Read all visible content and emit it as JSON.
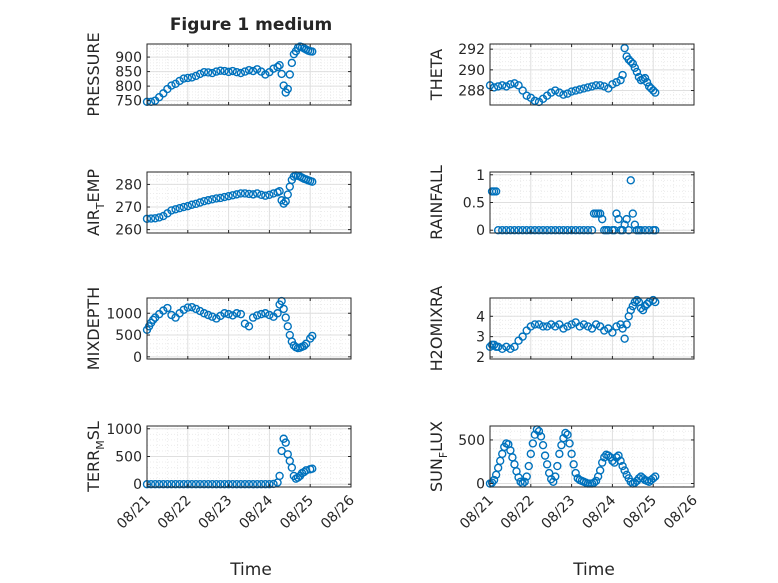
{
  "figure": {
    "title": "Figure 1 medium",
    "xlabel": "Time"
  },
  "colors": {
    "marker": "#0072bd",
    "axis": "#262626",
    "grid": "#dfdfdf",
    "minor_grid": "#ececec"
  },
  "chart_data": [
    {
      "type": "scatter",
      "ylabel": "PRESSURE",
      "yticks": [
        750,
        800,
        850,
        900
      ],
      "ylim": [
        735,
        945
      ],
      "series": [
        {
          "x": [
            0.0,
            0.1,
            0.2,
            0.3,
            0.4,
            0.5,
            0.6,
            0.7,
            0.8,
            0.9,
            1.0,
            1.1,
            1.2,
            1.3,
            1.4,
            1.5,
            1.6,
            1.7,
            1.8,
            1.9,
            2.0,
            2.1,
            2.2,
            2.3,
            2.4,
            2.5,
            2.6,
            2.7,
            2.8,
            2.9,
            3.0,
            3.1,
            3.2,
            3.25,
            3.3,
            3.35,
            3.4,
            3.45,
            3.5,
            3.55,
            3.6,
            3.65,
            3.7,
            3.75,
            3.8,
            3.85,
            3.9,
            3.95,
            4.0,
            4.05
          ],
          "y": [
            746,
            746,
            750,
            762,
            775,
            790,
            802,
            808,
            818,
            826,
            828,
            830,
            835,
            842,
            848,
            847,
            845,
            850,
            853,
            852,
            849,
            852,
            848,
            845,
            850,
            855,
            852,
            858,
            850,
            840,
            848,
            860,
            866,
            872,
            842,
            802,
            778,
            790,
            840,
            880,
            910,
            920,
            932,
            936,
            934,
            930,
            926,
            922,
            920,
            919
          ]
        }
      ]
    },
    {
      "type": "scatter",
      "ylabel": "THETA",
      "yticks": [
        288,
        290,
        292
      ],
      "ylim": [
        286.6,
        292.5
      ],
      "series": [
        {
          "x": [
            0.0,
            0.1,
            0.2,
            0.3,
            0.4,
            0.5,
            0.6,
            0.7,
            0.8,
            0.9,
            1.0,
            1.1,
            1.2,
            1.3,
            1.4,
            1.5,
            1.6,
            1.7,
            1.8,
            1.9,
            2.0,
            2.1,
            2.2,
            2.3,
            2.4,
            2.5,
            2.6,
            2.7,
            2.8,
            2.9,
            3.0,
            3.1,
            3.2,
            3.25,
            3.3,
            3.35,
            3.4,
            3.45,
            3.5,
            3.55,
            3.6,
            3.65,
            3.7,
            3.75,
            3.8,
            3.85,
            3.9,
            3.95,
            4.0,
            4.05
          ],
          "y": [
            288.5,
            288.3,
            288.4,
            288.5,
            288.4,
            288.6,
            288.7,
            288.5,
            288.0,
            287.5,
            287.3,
            287.0,
            286.9,
            287.2,
            287.5,
            287.8,
            288.0,
            287.8,
            287.6,
            287.7,
            287.9,
            288.0,
            288.1,
            288.2,
            288.3,
            288.4,
            288.5,
            288.5,
            288.4,
            288.2,
            288.6,
            288.8,
            289.0,
            289.5,
            292.1,
            291.3,
            291.0,
            290.8,
            290.6,
            290.2,
            289.8,
            289.3,
            289.0,
            289.1,
            289.2,
            288.8,
            288.4,
            288.2,
            288.0,
            287.8
          ]
        }
      ]
    },
    {
      "type": "scatter",
      "ylabel": "AIR_TEMP",
      "yticks": [
        260,
        270,
        280
      ],
      "ylim": [
        258.5,
        285.5
      ],
      "series": [
        {
          "x": [
            0.0,
            0.1,
            0.2,
            0.3,
            0.4,
            0.5,
            0.6,
            0.7,
            0.8,
            0.9,
            1.0,
            1.1,
            1.2,
            1.3,
            1.4,
            1.5,
            1.6,
            1.7,
            1.8,
            1.9,
            2.0,
            2.1,
            2.2,
            2.3,
            2.4,
            2.5,
            2.6,
            2.7,
            2.8,
            2.9,
            3.0,
            3.1,
            3.2,
            3.25,
            3.3,
            3.35,
            3.4,
            3.45,
            3.5,
            3.55,
            3.6,
            3.65,
            3.7,
            3.75,
            3.8,
            3.85,
            3.9,
            3.95,
            4.0,
            4.05
          ],
          "y": [
            264.8,
            264.9,
            265.0,
            265.4,
            266.0,
            267.2,
            268.5,
            269.0,
            269.5,
            270.0,
            270.4,
            271.0,
            271.4,
            272.0,
            272.6,
            273.0,
            273.4,
            273.8,
            274.0,
            274.4,
            274.8,
            275.2,
            275.6,
            276.0,
            276.0,
            275.8,
            275.6,
            276.0,
            275.4,
            275.0,
            275.4,
            276.0,
            276.5,
            277.0,
            273.0,
            271.5,
            272.5,
            275.5,
            279.0,
            282.0,
            283.5,
            284.0,
            283.8,
            283.5,
            283.0,
            282.5,
            282.2,
            281.8,
            281.5,
            281.2
          ]
        }
      ]
    },
    {
      "type": "scatter",
      "ylabel": "RAINFALL",
      "yticks": [
        0,
        0.5,
        1
      ],
      "ylim": [
        -0.05,
        1.05
      ],
      "series": [
        {
          "x": [
            0.05,
            0.1,
            0.15,
            0.2,
            0.3,
            0.4,
            0.5,
            0.6,
            0.7,
            0.8,
            0.9,
            1.0,
            1.1,
            1.2,
            1.3,
            1.4,
            1.5,
            1.6,
            1.7,
            1.8,
            1.9,
            2.0,
            2.1,
            2.2,
            2.3,
            2.4,
            2.5,
            2.55,
            2.6,
            2.65,
            2.7,
            2.75,
            2.8,
            2.85,
            2.9,
            3.0,
            3.05,
            3.1,
            3.15,
            3.2,
            3.25,
            3.3,
            3.35,
            3.4,
            3.45,
            3.5,
            3.55,
            3.6,
            3.65,
            3.7,
            3.8,
            3.9,
            4.0,
            4.05
          ],
          "y": [
            0.7,
            0.7,
            0.7,
            0.0,
            0.0,
            0.0,
            0.0,
            0.0,
            0.0,
            0.0,
            0.0,
            0.0,
            0.0,
            0.0,
            0.0,
            0.0,
            0.0,
            0.0,
            0.0,
            0.0,
            0.0,
            0.0,
            0.0,
            0.0,
            0.0,
            0.0,
            0.0,
            0.3,
            0.3,
            0.3,
            0.3,
            0.2,
            0.0,
            0.0,
            0.0,
            0.0,
            0.0,
            0.3,
            0.2,
            0.0,
            0.0,
            0.1,
            0.2,
            0.0,
            0.9,
            0.3,
            0.1,
            0.0,
            0.0,
            0.0,
            0.0,
            0.0,
            0.0,
            0.0
          ]
        }
      ]
    },
    {
      "type": "scatter",
      "ylabel": "MIXDEPTH",
      "yticks": [
        0,
        500,
        1000
      ],
      "ylim": [
        -50,
        1350
      ],
      "series": [
        {
          "x": [
            0.0,
            0.05,
            0.1,
            0.15,
            0.2,
            0.3,
            0.4,
            0.5,
            0.6,
            0.7,
            0.8,
            0.9,
            1.0,
            1.1,
            1.2,
            1.3,
            1.4,
            1.5,
            1.6,
            1.7,
            1.8,
            1.9,
            2.0,
            2.1,
            2.2,
            2.3,
            2.4,
            2.5,
            2.6,
            2.7,
            2.8,
            2.9,
            3.0,
            3.1,
            3.2,
            3.25,
            3.3,
            3.35,
            3.4,
            3.45,
            3.5,
            3.55,
            3.6,
            3.65,
            3.7,
            3.75,
            3.8,
            3.85,
            3.9,
            4.0,
            4.05
          ],
          "y": [
            620,
            700,
            780,
            850,
            900,
            980,
            1060,
            1120,
            960,
            900,
            1000,
            1080,
            1130,
            1140,
            1100,
            1050,
            1000,
            960,
            920,
            880,
            940,
            1000,
            980,
            950,
            1000,
            980,
            760,
            700,
            900,
            950,
            980,
            1000,
            960,
            920,
            1000,
            1200,
            1280,
            1100,
            900,
            700,
            500,
            350,
            260,
            220,
            200,
            210,
            230,
            250,
            300,
            420,
            480
          ]
        }
      ]
    },
    {
      "type": "scatter",
      "ylabel": "H2OMIXRA",
      "yticks": [
        2,
        3,
        4
      ],
      "ylim": [
        1.9,
        4.9
      ],
      "series": [
        {
          "x": [
            0.0,
            0.05,
            0.1,
            0.15,
            0.2,
            0.3,
            0.4,
            0.5,
            0.6,
            0.7,
            0.8,
            0.9,
            1.0,
            1.1,
            1.2,
            1.3,
            1.4,
            1.5,
            1.6,
            1.7,
            1.8,
            1.9,
            2.0,
            2.1,
            2.2,
            2.3,
            2.4,
            2.5,
            2.6,
            2.7,
            2.8,
            2.9,
            3.0,
            3.1,
            3.2,
            3.25,
            3.3,
            3.35,
            3.4,
            3.45,
            3.5,
            3.55,
            3.6,
            3.65,
            3.7,
            3.75,
            3.8,
            3.85,
            3.9,
            4.0,
            4.05
          ],
          "y": [
            2.5,
            2.6,
            2.6,
            2.5,
            2.5,
            2.4,
            2.5,
            2.4,
            2.5,
            2.8,
            3.0,
            3.3,
            3.5,
            3.6,
            3.6,
            3.5,
            3.5,
            3.6,
            3.5,
            3.6,
            3.4,
            3.5,
            3.6,
            3.7,
            3.5,
            3.6,
            3.5,
            3.4,
            3.6,
            3.5,
            3.3,
            3.4,
            3.2,
            3.5,
            3.6,
            3.4,
            2.9,
            3.6,
            4.0,
            4.3,
            4.5,
            4.7,
            4.8,
            4.7,
            4.4,
            4.3,
            4.5,
            4.6,
            4.7,
            4.8,
            4.7
          ]
        }
      ]
    },
    {
      "type": "scatter",
      "ylabel": "TERR_MSL",
      "yticks": [
        0,
        500,
        1000
      ],
      "ylim": [
        -50,
        1050
      ],
      "series": [
        {
          "x": [
            0.0,
            0.1,
            0.2,
            0.3,
            0.4,
            0.5,
            0.6,
            0.7,
            0.8,
            0.9,
            1.0,
            1.1,
            1.2,
            1.3,
            1.4,
            1.5,
            1.6,
            1.7,
            1.8,
            1.9,
            2.0,
            2.1,
            2.2,
            2.3,
            2.4,
            2.5,
            2.6,
            2.7,
            2.8,
            2.9,
            3.0,
            3.1,
            3.2,
            3.25,
            3.3,
            3.35,
            3.4,
            3.45,
            3.5,
            3.55,
            3.6,
            3.65,
            3.7,
            3.75,
            3.8,
            3.85,
            3.9,
            4.0,
            4.05
          ],
          "y": [
            0,
            0,
            0,
            0,
            0,
            0,
            0,
            0,
            0,
            0,
            0,
            0,
            0,
            0,
            0,
            0,
            0,
            0,
            0,
            0,
            0,
            0,
            0,
            0,
            0,
            0,
            0,
            0,
            0,
            0,
            0,
            5,
            30,
            150,
            600,
            820,
            750,
            540,
            420,
            300,
            150,
            100,
            120,
            150,
            200,
            220,
            250,
            270,
            280
          ]
        }
      ]
    },
    {
      "type": "scatter",
      "ylabel": "SUN_FLUX",
      "yticks": [
        0,
        500
      ],
      "ylim": [
        -40,
        660
      ],
      "series": [
        {
          "x": [
            0.0,
            0.05,
            0.1,
            0.15,
            0.2,
            0.25,
            0.3,
            0.35,
            0.4,
            0.45,
            0.5,
            0.55,
            0.6,
            0.65,
            0.7,
            0.75,
            0.8,
            0.85,
            0.9,
            0.95,
            1.0,
            1.05,
            1.1,
            1.15,
            1.2,
            1.25,
            1.3,
            1.35,
            1.4,
            1.45,
            1.5,
            1.55,
            1.6,
            1.65,
            1.7,
            1.75,
            1.8,
            1.85,
            1.9,
            1.95,
            2.0,
            2.05,
            2.1,
            2.15,
            2.2,
            2.25,
            2.3,
            2.35,
            2.4,
            2.45,
            2.5,
            2.55,
            2.6,
            2.65,
            2.7,
            2.75,
            2.8,
            2.85,
            2.9,
            2.95,
            3.0,
            3.05,
            3.1,
            3.15,
            3.2,
            3.25,
            3.3,
            3.35,
            3.4,
            3.45,
            3.5,
            3.55,
            3.6,
            3.65,
            3.7,
            3.75,
            3.8,
            3.85,
            3.9,
            3.95,
            4.0,
            4.05
          ],
          "y": [
            0,
            10,
            40,
            100,
            180,
            260,
            340,
            420,
            460,
            450,
            380,
            300,
            220,
            140,
            70,
            20,
            0,
            20,
            80,
            200,
            340,
            460,
            560,
            620,
            600,
            540,
            440,
            320,
            220,
            120,
            50,
            20,
            80,
            200,
            340,
            440,
            520,
            580,
            560,
            460,
            340,
            220,
            120,
            60,
            40,
            30,
            20,
            10,
            0,
            0,
            0,
            10,
            30,
            80,
            150,
            240,
            300,
            330,
            320,
            300,
            260,
            240,
            300,
            320,
            260,
            200,
            150,
            100,
            60,
            20,
            0,
            10,
            30,
            60,
            80,
            60,
            40,
            30,
            20,
            40,
            60,
            80
          ]
        }
      ]
    }
  ],
  "xaxis": {
    "ticks": [
      "08/21",
      "08/22",
      "08/23",
      "08/24",
      "08/25",
      "08/26"
    ],
    "xlim_days": [
      0,
      5
    ],
    "grid": true,
    "minor_grid": true
  }
}
